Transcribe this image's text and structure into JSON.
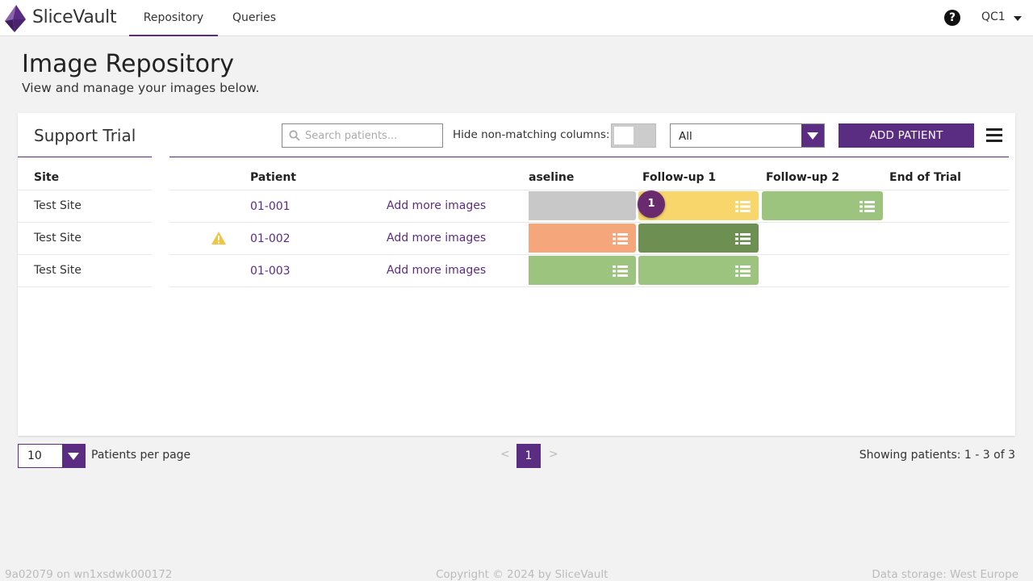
{
  "app": {
    "brand": "SliceVault"
  },
  "nav": {
    "tabs": [
      {
        "label": "Repository",
        "active": true
      },
      {
        "label": "Queries",
        "active": false
      }
    ],
    "help_icon": "question-circle-icon",
    "user": "QC1"
  },
  "page": {
    "title": "Image Repository",
    "subtitle": "View and manage your images below."
  },
  "trial": {
    "name": "Support Trial",
    "search_placeholder": "Search patients...",
    "hide_label": "Hide non-matching columns:",
    "hide_toggle_on": false,
    "filter_value": "All",
    "add_patient_label": "ADD PATIENT"
  },
  "table": {
    "headers": {
      "site": "Site",
      "patient": "Patient",
      "baseline": "aseline",
      "fu1": "Follow-up 1",
      "fu2": "Follow-up 2",
      "eot": "End of Trial"
    },
    "rows": [
      {
        "site": "Test Site",
        "patient": "01-001",
        "add_more": "Add more images",
        "warning": false
      },
      {
        "site": "Test Site",
        "patient": "01-002",
        "add_more": "Add more images",
        "warning": true
      },
      {
        "site": "Test Site",
        "patient": "01-003",
        "add_more": "Add more images",
        "warning": false
      }
    ],
    "visits": [
      {
        "baseline": "#c8c8c8",
        "fu1": "#f9d66b",
        "fu2": "#9dc47e"
      },
      {
        "baseline": "#f5a67a",
        "fu1": "#6e8f52",
        "fu2": null
      },
      {
        "baseline": "#9dc47e",
        "fu1": "#9dc47e",
        "fu2": null
      }
    ],
    "badge": "1"
  },
  "pagination": {
    "per_page": "10",
    "per_page_label": "Patients per page",
    "prev": "<",
    "current": "1",
    "next": ">",
    "showing": "Showing patients: 1 - 3 of 3"
  },
  "footer": {
    "build": "9a02079 on wn1xsdwk000172",
    "copyright": "Copyright © 2024 by SliceVault",
    "storage": "Data storage: West Europe"
  },
  "colors": {
    "accent": "#5b2d82",
    "badge": "#6a2b6e"
  }
}
